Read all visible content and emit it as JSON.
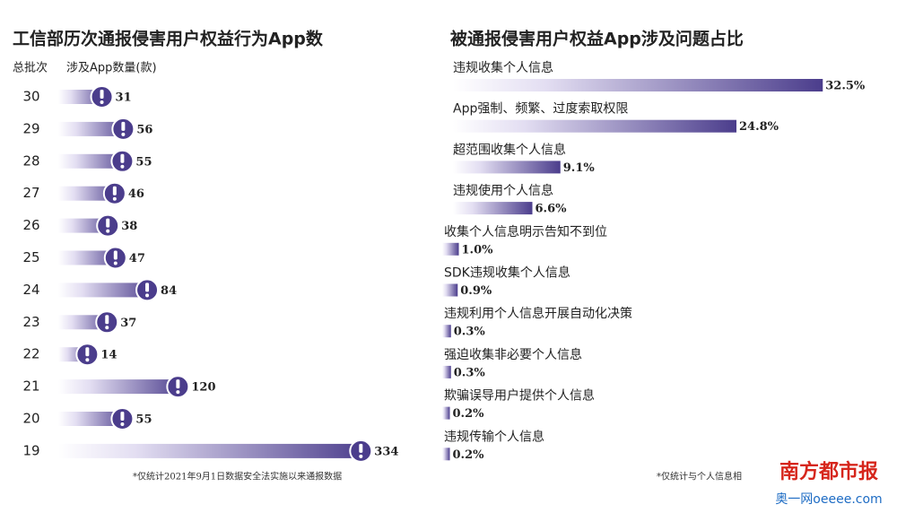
{
  "chart_data": [
    {
      "type": "bar",
      "title": "工信部历次通报侵害用户权益行为App数",
      "category_header": "总批次",
      "value_header": "涉及App数量(款)",
      "categories": [
        "30",
        "29",
        "28",
        "27",
        "26",
        "25",
        "24",
        "23",
        "22",
        "21",
        "20",
        "19"
      ],
      "values": [
        31,
        56,
        55,
        46,
        38,
        47,
        84,
        37,
        14,
        120,
        55,
        334
      ],
      "color": "#4b3d8c",
      "note": "*仅统计2021年9月1日数据安全法实施以来通报数据"
    },
    {
      "type": "bar",
      "title": "被通报侵害用户权益App涉及问题占比",
      "categories": [
        "违规收集个人信息",
        "App强制、频繁、过度索取权限",
        "超范围收集个人信息",
        "违规使用个人信息",
        "收集个人信息明示告知不到位",
        "SDK违规收集个人信息",
        "违规利用个人信息开展自动化决策",
        "强迫收集非必要个人信息",
        "欺骗误导用户提供个人信息",
        "违规传输个人信息"
      ],
      "values": [
        32.5,
        24.8,
        9.1,
        6.6,
        1.0,
        0.9,
        0.3,
        0.3,
        0.2,
        0.2
      ],
      "value_labels": [
        "32.5%",
        "24.8%",
        "9.1%",
        "6.6%",
        "1.0%",
        "0.9%",
        "0.3%",
        "0.3%",
        "0.2%",
        "0.2%"
      ],
      "color": "#4b3d8c",
      "note": "*仅统计与个人信息相"
    }
  ],
  "watermark": {
    "name": "南方都市报",
    "site": "奥一网oeeee.com"
  }
}
